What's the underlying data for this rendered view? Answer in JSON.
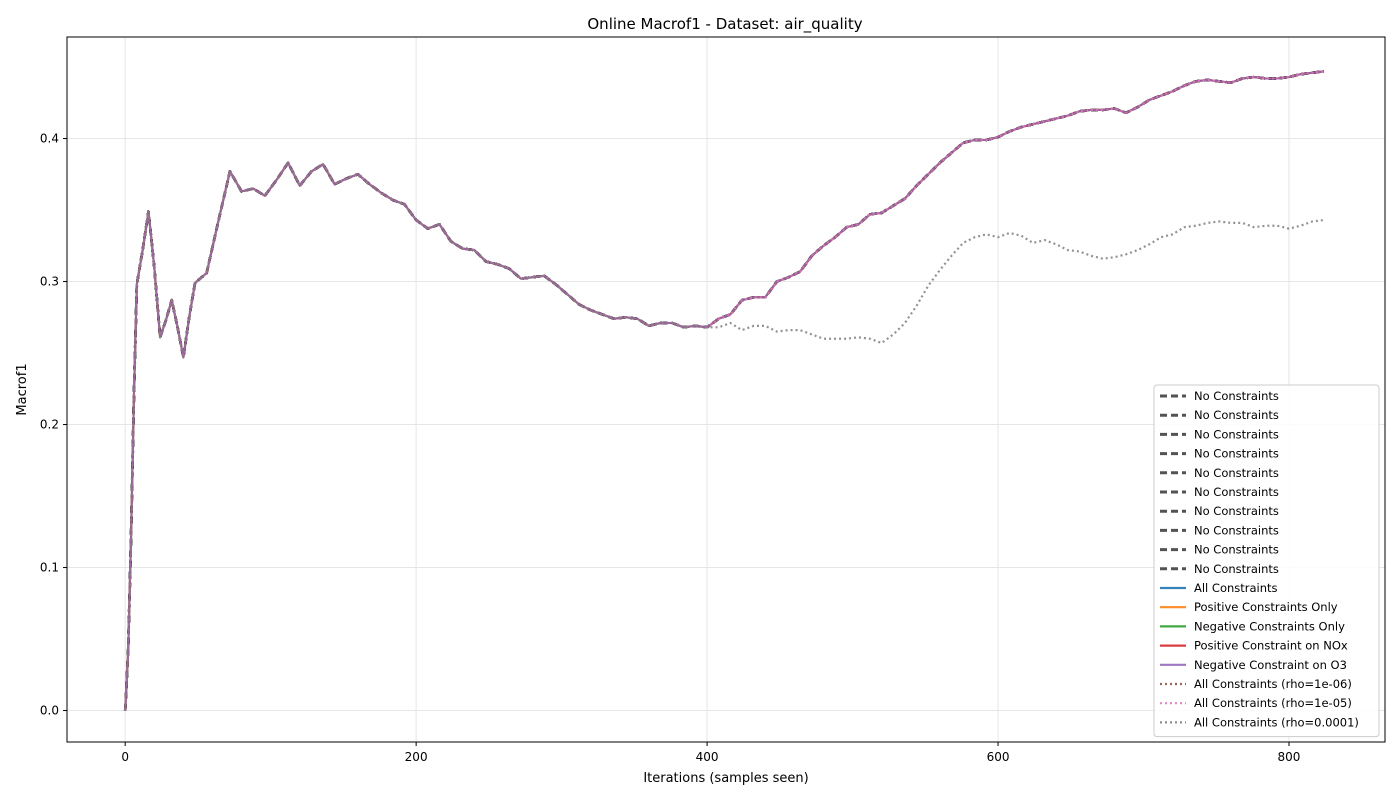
{
  "chart_data": {
    "type": "line",
    "title": "Online Macrof1 - Dataset: air_quality",
    "xlabel": "Iterations (samples seen)",
    "ylabel": "Macrof1",
    "xlim": [
      -40,
      866
    ],
    "ylim": [
      -0.022,
      0.471
    ],
    "xticks": [
      0,
      200,
      400,
      600,
      800
    ],
    "yticks": [
      0.0,
      0.1,
      0.2,
      0.3,
      0.4
    ],
    "xtick_labels": [
      "0",
      "200",
      "400",
      "600",
      "800"
    ],
    "ytick_labels": [
      "0.0",
      "0.1",
      "0.2",
      "0.3",
      "0.4"
    ],
    "grid": true,
    "legend_position": "lower-right",
    "shared_curve": [
      [
        0,
        0.0
      ],
      [
        2,
        0.04
      ],
      [
        4,
        0.12
      ],
      [
        6,
        0.22
      ],
      [
        8,
        0.298
      ],
      [
        12,
        0.322
      ],
      [
        16,
        0.349
      ],
      [
        20,
        0.31
      ],
      [
        24,
        0.261
      ],
      [
        28,
        0.273
      ],
      [
        32,
        0.287
      ],
      [
        36,
        0.268
      ],
      [
        40,
        0.247
      ],
      [
        44,
        0.275
      ],
      [
        48,
        0.299
      ],
      [
        56,
        0.306
      ],
      [
        64,
        0.342
      ],
      [
        72,
        0.377
      ],
      [
        80,
        0.363
      ],
      [
        88,
        0.365
      ],
      [
        96,
        0.36
      ],
      [
        104,
        0.371
      ],
      [
        112,
        0.383
      ],
      [
        120,
        0.367
      ],
      [
        128,
        0.377
      ],
      [
        136,
        0.382
      ],
      [
        144,
        0.368
      ],
      [
        152,
        0.372
      ],
      [
        160,
        0.375
      ],
      [
        168,
        0.368
      ],
      [
        176,
        0.362
      ],
      [
        184,
        0.357
      ],
      [
        192,
        0.354
      ],
      [
        200,
        0.343
      ],
      [
        208,
        0.337
      ],
      [
        216,
        0.34
      ],
      [
        224,
        0.328
      ],
      [
        232,
        0.323
      ],
      [
        240,
        0.322
      ],
      [
        248,
        0.314
      ],
      [
        256,
        0.312
      ],
      [
        264,
        0.309
      ],
      [
        272,
        0.302
      ],
      [
        280,
        0.303
      ],
      [
        288,
        0.304
      ],
      [
        296,
        0.298
      ],
      [
        304,
        0.291
      ],
      [
        312,
        0.284
      ],
      [
        320,
        0.28
      ],
      [
        328,
        0.277
      ],
      [
        336,
        0.274
      ],
      [
        344,
        0.275
      ],
      [
        352,
        0.274
      ],
      [
        360,
        0.269
      ],
      [
        368,
        0.271
      ],
      [
        376,
        0.271
      ],
      [
        384,
        0.268
      ],
      [
        392,
        0.269
      ],
      [
        400,
        0.268
      ]
    ],
    "series": [
      {
        "name": "No Constraints",
        "style": "dashed",
        "color": "#404040",
        "branch": "main"
      },
      {
        "name": "No Constraints",
        "style": "dashed",
        "color": "#404040",
        "branch": "main"
      },
      {
        "name": "No Constraints",
        "style": "dashed",
        "color": "#404040",
        "branch": "main"
      },
      {
        "name": "No Constraints",
        "style": "dashed",
        "color": "#404040",
        "branch": "main"
      },
      {
        "name": "No Constraints",
        "style": "dashed",
        "color": "#404040",
        "branch": "main"
      },
      {
        "name": "No Constraints",
        "style": "dashed",
        "color": "#404040",
        "branch": "main"
      },
      {
        "name": "No Constraints",
        "style": "dashed",
        "color": "#404040",
        "branch": "main"
      },
      {
        "name": "No Constraints",
        "style": "dashed",
        "color": "#404040",
        "branch": "main"
      },
      {
        "name": "No Constraints",
        "style": "dashed",
        "color": "#404040",
        "branch": "main"
      },
      {
        "name": "No Constraints",
        "style": "dashed",
        "color": "#404040",
        "branch": "main"
      },
      {
        "name": "All Constraints",
        "style": "solid",
        "color": "#1f77b4",
        "branch": "main"
      },
      {
        "name": "Positive Constraints Only",
        "style": "solid",
        "color": "#ff7f0e",
        "branch": "main"
      },
      {
        "name": "Negative Constraints Only",
        "style": "solid",
        "color": "#2ca02c",
        "branch": "main"
      },
      {
        "name": "Positive Constraint on NOx",
        "style": "solid",
        "color": "#d62728",
        "branch": "main"
      },
      {
        "name": "Negative Constraint on O3",
        "style": "solid",
        "color": "#9467bd",
        "branch": "main"
      },
      {
        "name": "All Constraints (rho=1e-06)",
        "style": "dotted",
        "color": "#8c564b",
        "branch": "main"
      },
      {
        "name": "All Constraints (rho=1e-05)",
        "style": "dotted",
        "color": "#e377c2",
        "branch": "main"
      },
      {
        "name": "All Constraints (rho=0.0001)",
        "style": "dotted",
        "color": "#7f7f7f",
        "branch": "rho0001"
      }
    ],
    "branches": {
      "main": [
        [
          408,
          0.274
        ],
        [
          416,
          0.277
        ],
        [
          424,
          0.287
        ],
        [
          432,
          0.289
        ],
        [
          440,
          0.289
        ],
        [
          448,
          0.3
        ],
        [
          456,
          0.303
        ],
        [
          464,
          0.307
        ],
        [
          472,
          0.318
        ],
        [
          480,
          0.325
        ],
        [
          488,
          0.331
        ],
        [
          496,
          0.338
        ],
        [
          504,
          0.34
        ],
        [
          512,
          0.347
        ],
        [
          520,
          0.348
        ],
        [
          528,
          0.353
        ],
        [
          536,
          0.358
        ],
        [
          544,
          0.367
        ],
        [
          552,
          0.375
        ],
        [
          560,
          0.383
        ],
        [
          568,
          0.39
        ],
        [
          576,
          0.397
        ],
        [
          584,
          0.399
        ],
        [
          592,
          0.399
        ],
        [
          600,
          0.401
        ],
        [
          608,
          0.405
        ],
        [
          616,
          0.408
        ],
        [
          624,
          0.41
        ],
        [
          632,
          0.412
        ],
        [
          640,
          0.414
        ],
        [
          648,
          0.416
        ],
        [
          656,
          0.419
        ],
        [
          664,
          0.42
        ],
        [
          672,
          0.42
        ],
        [
          680,
          0.421
        ],
        [
          688,
          0.418
        ],
        [
          696,
          0.422
        ],
        [
          704,
          0.427
        ],
        [
          712,
          0.43
        ],
        [
          720,
          0.433
        ],
        [
          728,
          0.437
        ],
        [
          736,
          0.44
        ],
        [
          744,
          0.441
        ],
        [
          752,
          0.44
        ],
        [
          760,
          0.439
        ],
        [
          768,
          0.442
        ],
        [
          776,
          0.443
        ],
        [
          784,
          0.442
        ],
        [
          792,
          0.442
        ],
        [
          800,
          0.443
        ],
        [
          808,
          0.445
        ],
        [
          816,
          0.446
        ],
        [
          824,
          0.447
        ]
      ],
      "rho0001": [
        [
          408,
          0.268
        ],
        [
          416,
          0.271
        ],
        [
          424,
          0.266
        ],
        [
          432,
          0.269
        ],
        [
          440,
          0.269
        ],
        [
          448,
          0.265
        ],
        [
          456,
          0.266
        ],
        [
          464,
          0.266
        ],
        [
          472,
          0.263
        ],
        [
          480,
          0.26
        ],
        [
          488,
          0.26
        ],
        [
          496,
          0.26
        ],
        [
          504,
          0.261
        ],
        [
          512,
          0.26
        ],
        [
          520,
          0.257
        ],
        [
          528,
          0.263
        ],
        [
          536,
          0.271
        ],
        [
          544,
          0.283
        ],
        [
          552,
          0.297
        ],
        [
          560,
          0.308
        ],
        [
          568,
          0.318
        ],
        [
          576,
          0.327
        ],
        [
          584,
          0.331
        ],
        [
          592,
          0.333
        ],
        [
          600,
          0.331
        ],
        [
          608,
          0.334
        ],
        [
          616,
          0.332
        ],
        [
          624,
          0.327
        ],
        [
          632,
          0.329
        ],
        [
          640,
          0.326
        ],
        [
          648,
          0.322
        ],
        [
          656,
          0.321
        ],
        [
          664,
          0.318
        ],
        [
          672,
          0.316
        ],
        [
          680,
          0.317
        ],
        [
          688,
          0.319
        ],
        [
          696,
          0.322
        ],
        [
          704,
          0.326
        ],
        [
          712,
          0.331
        ],
        [
          720,
          0.333
        ],
        [
          728,
          0.338
        ],
        [
          736,
          0.339
        ],
        [
          744,
          0.341
        ],
        [
          752,
          0.342
        ],
        [
          760,
          0.341
        ],
        [
          768,
          0.341
        ],
        [
          776,
          0.338
        ],
        [
          784,
          0.339
        ],
        [
          792,
          0.339
        ],
        [
          800,
          0.337
        ],
        [
          808,
          0.339
        ],
        [
          816,
          0.342
        ],
        [
          824,
          0.343
        ]
      ]
    }
  }
}
